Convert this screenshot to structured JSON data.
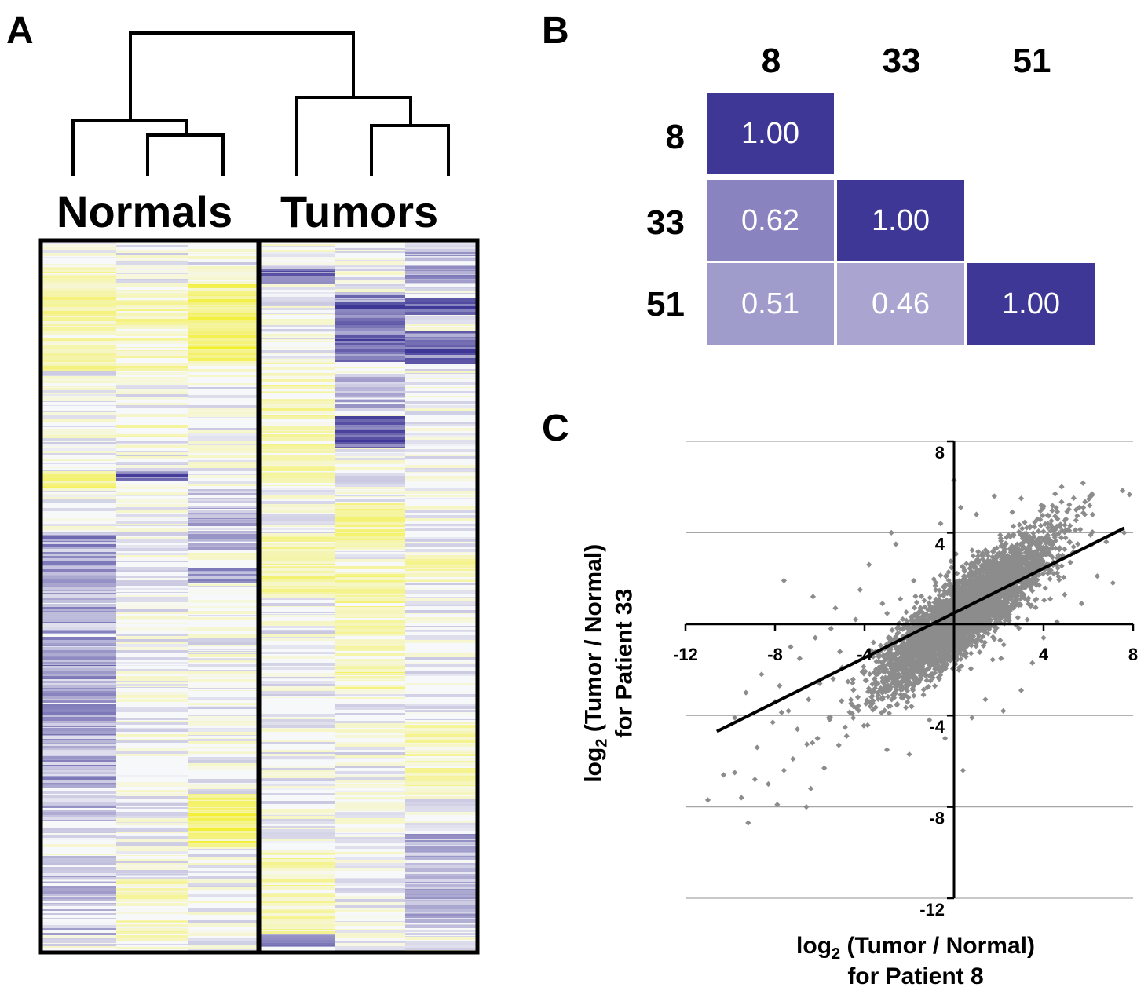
{
  "panels": {
    "a": "A",
    "b": "B",
    "c": "C"
  },
  "colors": {
    "high": "#f2ee1c",
    "low": "#3f3796",
    "neutral": "#f7f8fa",
    "point": "#8c8c8c",
    "grid": "#a6a6a6"
  },
  "chart_data": [
    {
      "type": "heatmap",
      "groups": [
        {
          "label": "Normals",
          "columns": 3
        },
        {
          "label": "Tumors",
          "columns": 3
        }
      ],
      "dendrogram": "two clusters: Normals (3 samples) and Tumors (3 samples)",
      "rows_description": "genes clustered; yellow = high, blue = low"
    },
    {
      "type": "table",
      "labels": [
        "8",
        "33",
        "51"
      ],
      "matrix": [
        [
          "1.00",
          "",
          ""
        ],
        [
          "0.62",
          "1.00",
          ""
        ],
        [
          "0.51",
          "0.46",
          "1.00"
        ]
      ],
      "values": [
        [
          1.0,
          null,
          null
        ],
        [
          0.62,
          1.0,
          null
        ],
        [
          0.51,
          0.46,
          1.0
        ]
      ]
    },
    {
      "type": "scatter",
      "xlabel": {
        "prefix": "log",
        "sub": "2",
        "text": " (Tumor / Normal)",
        "line2": "for Patient 8"
      },
      "ylabel": {
        "prefix": "log",
        "sub": "2",
        "text": " (Tumor / Normal)",
        "line2": "for Patient 33"
      },
      "xlim": [
        -12,
        8
      ],
      "ylim": [
        -12,
        8
      ],
      "xticks": [
        "-12",
        "-8",
        "-4",
        "4",
        "8"
      ],
      "xtick_values": [
        -12,
        -8,
        -4,
        4,
        8
      ],
      "yticks": [
        "8",
        "4",
        "-4",
        "-8",
        "-12"
      ],
      "ytick_values": [
        8,
        4,
        -4,
        -8,
        -12
      ],
      "trendline": {
        "x": [
          -10.6,
          7.6
        ],
        "y": [
          -4.7,
          4.2
        ]
      },
      "cloud": {
        "center": [
          0.5,
          0.5
        ],
        "description": "dense cloud of several thousand gene points around the origin, positively correlated"
      },
      "points": [
        [
          -11,
          -7.7
        ],
        [
          -9.2,
          -8.7
        ],
        [
          -7.9,
          -7.9
        ],
        [
          -6.6,
          -8.0
        ],
        [
          -6.4,
          -7.2
        ],
        [
          -9.8,
          -6.5
        ],
        [
          -8.9,
          -6.8
        ],
        [
          -7.2,
          -5.9
        ],
        [
          -9.5,
          -7.6
        ],
        [
          -8.3,
          -7.0
        ],
        [
          -10.3,
          -6.6
        ],
        [
          -7.6,
          -6.4
        ],
        [
          -5.8,
          -6.3
        ],
        [
          -8.8,
          -5.4
        ],
        [
          -7.0,
          -4.6
        ],
        [
          -6.1,
          -5.0
        ],
        [
          -8.1,
          -4.3
        ],
        [
          -9.3,
          -3.0
        ],
        [
          -7.4,
          -3.8
        ],
        [
          -5.6,
          -4.1
        ],
        [
          -6.5,
          -3.3
        ],
        [
          -8.6,
          -2.2
        ],
        [
          -7.8,
          -2.7
        ],
        [
          -6.9,
          -1.5
        ],
        [
          -5.4,
          -2.4
        ],
        [
          -4.5,
          -3.6
        ],
        [
          -7.3,
          -1.0
        ],
        [
          -6.2,
          -0.6
        ],
        [
          -5.1,
          -1.2
        ],
        [
          -4.1,
          -2.1
        ],
        [
          -7.6,
          1.9
        ],
        [
          -5.3,
          0.7
        ],
        [
          -4.4,
          0.2
        ],
        [
          -3.6,
          -0.8
        ],
        [
          -6.3,
          1.2
        ],
        [
          -2.8,
          4.0
        ],
        [
          -3.8,
          2.6
        ],
        [
          -2.6,
          3.5
        ],
        [
          -1.8,
          1.9
        ],
        [
          -0.6,
          4.4
        ],
        [
          0.0,
          6.3
        ],
        [
          0.3,
          5.1
        ],
        [
          1.0,
          4.8
        ],
        [
          1.8,
          5.6
        ],
        [
          2.6,
          4.9
        ],
        [
          3.0,
          5.5
        ],
        [
          3.9,
          5.2
        ],
        [
          4.5,
          3.8
        ],
        [
          5.0,
          4.6
        ],
        [
          5.6,
          5.1
        ],
        [
          6.1,
          3.9
        ],
        [
          6.8,
          3.6
        ],
        [
          7.6,
          4.0
        ],
        [
          7.1,
          1.8
        ],
        [
          6.4,
          2.1
        ],
        [
          5.7,
          0.9
        ],
        [
          5.2,
          2.7
        ],
        [
          4.6,
          0.1
        ],
        [
          4.0,
          -0.6
        ],
        [
          3.5,
          -1.7
        ],
        [
          3.0,
          -2.9
        ],
        [
          2.2,
          -3.8
        ],
        [
          1.4,
          -3.3
        ],
        [
          0.8,
          -4.1
        ],
        [
          0.4,
          -6.4
        ],
        [
          -0.4,
          -5.0
        ],
        [
          -1.1,
          -4.2
        ],
        [
          -1.9,
          -3.6
        ],
        [
          -2.9,
          -3.9
        ],
        [
          -3.4,
          -2.6
        ],
        [
          -2.2,
          -1.4
        ],
        [
          -1.5,
          0.6
        ],
        [
          -2.4,
          1.1
        ],
        [
          -3.2,
          0.9
        ],
        [
          -4.2,
          1.5
        ],
        [
          2.1,
          -1.5
        ],
        [
          2.7,
          3.3
        ],
        [
          3.4,
          2.6
        ],
        [
          1.2,
          2.4
        ],
        [
          4.3,
          1.1
        ],
        [
          -5.0,
          -1.9
        ],
        [
          -6.0,
          -2.6
        ],
        [
          -4.8,
          -4.9
        ],
        [
          -3.0,
          -5.5
        ],
        [
          -2.0,
          -5.7
        ],
        [
          -9.8,
          -4.1
        ],
        [
          -8.0,
          -3.4
        ],
        [
          -5.5,
          -0.2
        ]
      ]
    }
  ]
}
